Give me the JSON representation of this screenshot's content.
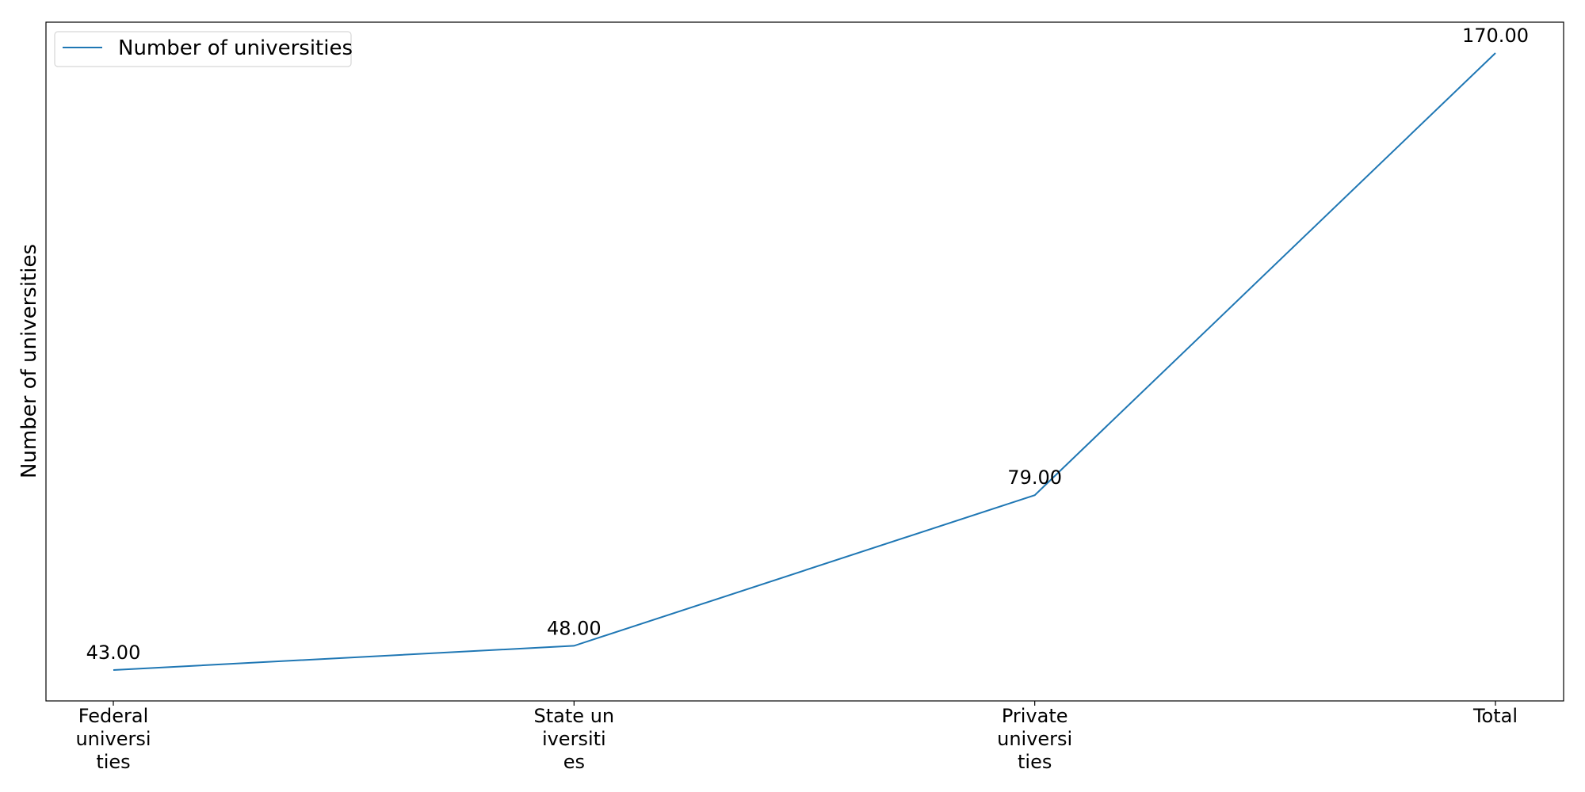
{
  "chart_data": {
    "type": "line",
    "categories": [
      "Federal universities",
      "State universities",
      "Private universities",
      "Total"
    ],
    "category_tick_lines": [
      [
        "Federal",
        "universi",
        "ties"
      ],
      [
        "State un",
        "iversiti",
        "es"
      ],
      [
        "Private",
        "universi",
        "ties"
      ],
      [
        "Total"
      ]
    ],
    "series": [
      {
        "name": "Number of universities",
        "values": [
          43,
          48,
          79,
          170
        ],
        "value_labels": [
          "43.00",
          "48.00",
          "79.00",
          "170.00"
        ],
        "color": "#1f77b4"
      }
    ],
    "xlabel": "",
    "ylabel": "Number of universities",
    "ylim": [
      36.65,
      176.35
    ],
    "grid": false,
    "legend_position": "top-left",
    "y_ticks_visible": false
  }
}
